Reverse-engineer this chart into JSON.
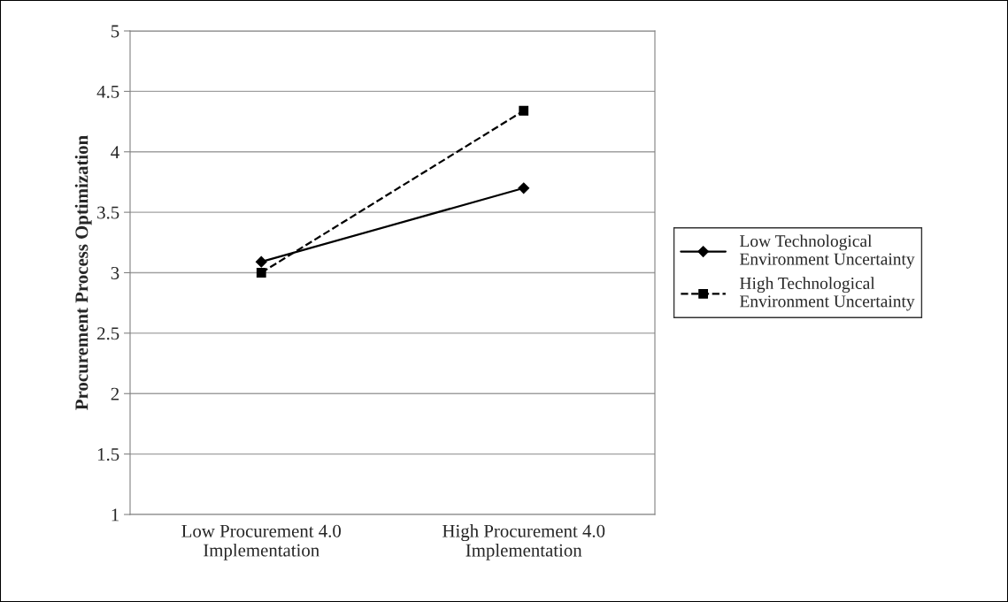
{
  "chart_data": {
    "type": "line",
    "ylabel": "Procurement Process Optimization",
    "categories": [
      "Low Procurement 4.0\nImplementation",
      "High Procurement 4.0\nImplementation"
    ],
    "series": [
      {
        "name": "Low Technological\nEnvironment Uncertainty",
        "color": "#000000",
        "values": [
          3.09,
          3.7
        ],
        "marker": "diamond",
        "line_style": "solid"
      },
      {
        "name": "High Technological\nEnvironment Uncertainty",
        "color": "#000000",
        "values": [
          3.0,
          4.34
        ],
        "marker": "square",
        "line_style": "dashed"
      }
    ],
    "ylim": [
      1,
      5
    ],
    "yticks": [
      1,
      1.5,
      2,
      2.5,
      3,
      3.5,
      4,
      4.5,
      5
    ],
    "grid": "y",
    "legend": "right"
  }
}
